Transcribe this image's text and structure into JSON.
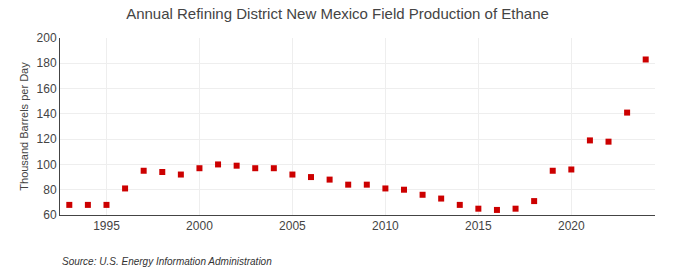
{
  "chart_data": {
    "type": "scatter",
    "title": "Annual Refining District New Mexico Field Production of Ethane",
    "ylabel": "Thousand Barrels per Day",
    "annotations": [
      "Source: U.S. Energy Information Administration"
    ],
    "x": [
      1993,
      1994,
      1995,
      1996,
      1997,
      1998,
      1999,
      2000,
      2001,
      2002,
      2003,
      2004,
      2005,
      2006,
      2007,
      2008,
      2009,
      2010,
      2011,
      2012,
      2013,
      2014,
      2015,
      2016,
      2017,
      2018,
      2019,
      2020,
      2021,
      2022,
      2023,
      2024
    ],
    "values": [
      68,
      68,
      68,
      81,
      95,
      94,
      92,
      97,
      100,
      99,
      97,
      97,
      92,
      90,
      88,
      84,
      84,
      81,
      80,
      76,
      73,
      68,
      65,
      64,
      65,
      71,
      95,
      96,
      119,
      118,
      141,
      183
    ],
    "color": "#cc0000",
    "marker": "square",
    "xlim": [
      1992.5,
      2024.5
    ],
    "xticks": [
      1995,
      2000,
      2005,
      2010,
      2015,
      2020
    ],
    "ylim": [
      60,
      200
    ],
    "yticks": [
      60,
      80,
      100,
      120,
      140,
      160,
      180,
      200
    ],
    "grid": true
  }
}
